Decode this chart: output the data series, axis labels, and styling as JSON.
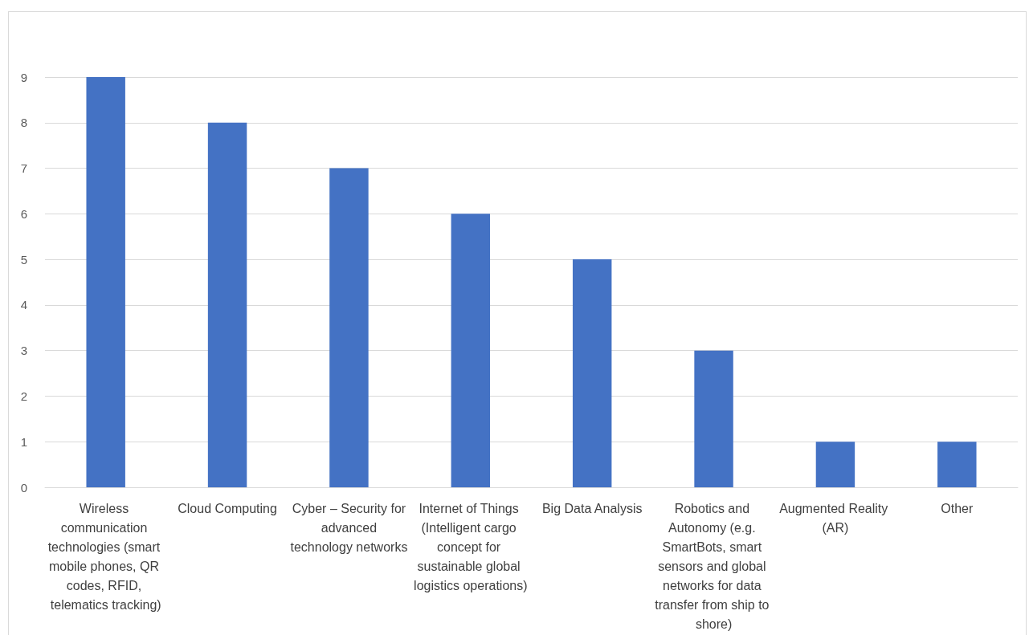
{
  "chart_data": {
    "type": "bar",
    "categories": [
      "Wireless communication technologies (smart mobile phones, QR codes, RFID, telematics tracking)",
      "Cloud Computing",
      "Cyber – Security for advanced technology networks",
      "Internet of Things (Intelligent cargo concept for sustainable global logistics operations)",
      "Big Data Analysis",
      "Robotics and Autonomy (e.g. SmartBots, smart sensors and global networks for data transfer from ship to shore)",
      "Augmented Reality (AR)",
      "Other"
    ],
    "values": [
      9,
      8,
      7,
      6,
      5,
      3,
      1,
      1
    ],
    "color": "#4472c4",
    "ylim": [
      0,
      9
    ],
    "yticks": [
      0,
      1,
      2,
      3,
      4,
      5,
      6,
      7,
      8,
      9
    ],
    "grid": "y"
  }
}
